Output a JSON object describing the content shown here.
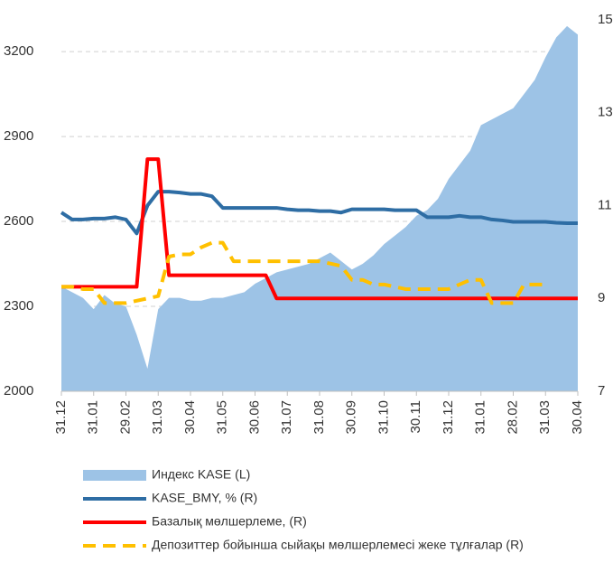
{
  "chart_data": {
    "type": "line",
    "categories": [
      "31.12",
      null,
      null,
      "31.01",
      null,
      null,
      "29.02",
      null,
      null,
      "31.03",
      null,
      null,
      "30.04",
      null,
      null,
      "31.05",
      null,
      null,
      "30.06",
      null,
      null,
      "31.07",
      null,
      null,
      "31.08",
      null,
      null,
      "30.09",
      null,
      null,
      "31.10",
      null,
      null,
      "30.11",
      null,
      null,
      "31.12",
      null,
      null,
      "31.01",
      null,
      null,
      "28.02",
      null,
      null,
      "31.03",
      null,
      null,
      "30.04"
    ],
    "ylim": [
      2000,
      3312
    ],
    "yticks": [
      2000,
      2300,
      2600,
      2900,
      3200
    ],
    "y2lim": [
      7,
      15
    ],
    "y2ticks": [
      7,
      9,
      11,
      13,
      15
    ],
    "grid": true,
    "series": [
      {
        "name": "Индекс KASE (L)",
        "kind": "area",
        "color": "#9dc3e6",
        "values": [
          2370,
          2350,
          2330,
          2290,
          2340,
          2310,
          2300,
          2200,
          2080,
          2290,
          2330,
          2330,
          2320,
          2320,
          2330,
          2330,
          2340,
          2350,
          2380,
          2400,
          2420,
          2430,
          2440,
          2450,
          2470,
          2490,
          2460,
          2430,
          2450,
          2480,
          2520,
          2550,
          2580,
          2620,
          2640,
          2680,
          2750,
          2800,
          2850,
          2940,
          2960,
          2980,
          3000,
          3050,
          3100,
          3180,
          3250,
          3290,
          3260
        ]
      },
      {
        "name": "KASE_BMY, % (R)",
        "kind": "line",
        "axis": "y2",
        "color": "#2e6da4",
        "values": [
          10.85,
          10.7,
          10.7,
          10.72,
          10.72,
          10.75,
          10.7,
          10.4,
          11.0,
          11.3,
          11.3,
          11.28,
          11.25,
          11.25,
          11.2,
          10.95,
          10.95,
          10.95,
          10.95,
          10.95,
          10.95,
          10.92,
          10.9,
          10.9,
          10.88,
          10.88,
          10.85,
          10.92,
          10.92,
          10.92,
          10.92,
          10.9,
          10.9,
          10.9,
          10.75,
          10.75,
          10.75,
          10.78,
          10.75,
          10.75,
          10.7,
          10.68,
          10.65,
          10.65,
          10.65,
          10.65,
          10.63,
          10.62,
          10.62
        ]
      },
      {
        "name": "Базалық мөлшерлеме, (R)",
        "kind": "line",
        "axis": "y2",
        "color": "#ff0000",
        "values": [
          9.25,
          9.25,
          9.25,
          9.25,
          9.25,
          9.25,
          9.25,
          9.25,
          12,
          12,
          9.5,
          9.5,
          9.5,
          9.5,
          9.5,
          9.5,
          9.5,
          9.5,
          9.5,
          9.5,
          9.0,
          9.0,
          9.0,
          9.0,
          9.0,
          9.0,
          9.0,
          9.0,
          9.0,
          9.0,
          9.0,
          9.0,
          9.0,
          9.0,
          9.0,
          9.0,
          9.0,
          9.0,
          9.0,
          9.0,
          9.0,
          9.0,
          9.0,
          9.0,
          9.0,
          9.0,
          9.0,
          9.0,
          9.0
        ]
      },
      {
        "name": "Депозиттер бойынша сыйақы мөлшерлемесі жеке тұлғалар (R)",
        "kind": "line",
        "dashed": true,
        "axis": "y2",
        "color": "#ffc000",
        "values": [
          9.25,
          9.25,
          9.2,
          9.2,
          8.9,
          8.9,
          8.9,
          8.95,
          9.0,
          9.05,
          9.9,
          9.95,
          9.95,
          10.1,
          10.2,
          10.2,
          9.8,
          9.8,
          9.8,
          9.8,
          9.8,
          9.8,
          9.8,
          9.8,
          9.8,
          9.75,
          9.7,
          9.4,
          9.4,
          9.3,
          9.3,
          9.25,
          9.2,
          9.2,
          9.2,
          9.2,
          9.2,
          9.3,
          9.4,
          9.4,
          8.9,
          8.9,
          8.9,
          9.3,
          9.3,
          9.3,
          null,
          null,
          null
        ]
      }
    ]
  }
}
